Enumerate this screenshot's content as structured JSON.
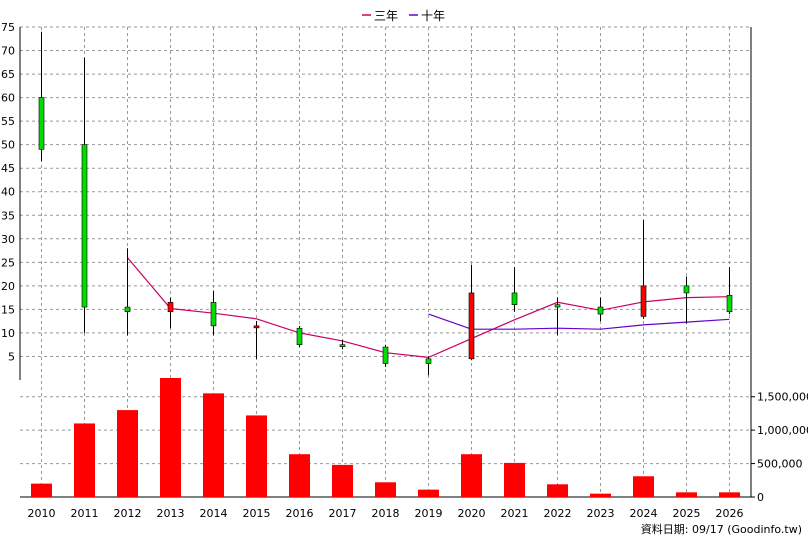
{
  "legend": {
    "ma3_label": "三年",
    "ma10_label": "十年"
  },
  "footer": "資料日期: 09/17  (Goodinfo.tw)",
  "colors": {
    "up": "#ff0000",
    "down": "#00dd00",
    "ma3": "#cc0066",
    "ma10": "#6600cc",
    "volume": "#ff0000",
    "grid": "#999999"
  },
  "chart_data": [
    {
      "type": "candlestick",
      "title": "",
      "categories": [
        "2010",
        "2011",
        "2012",
        "2013",
        "2014",
        "2015",
        "2016",
        "2017",
        "2018",
        "2019",
        "2020",
        "2021",
        "2022",
        "2023",
        "2024",
        "2025",
        "2026"
      ],
      "ylim": [
        0,
        75
      ],
      "yticks": [
        5,
        10,
        15,
        20,
        25,
        30,
        35,
        40,
        45,
        50,
        55,
        60,
        65,
        70,
        75
      ],
      "grid": true,
      "candles": [
        {
          "open": 60,
          "high": 74,
          "low": 46.5,
          "close": 49
        },
        {
          "open": 50,
          "high": 68.5,
          "low": 10,
          "close": 15.5
        },
        {
          "open": 15.5,
          "high": 28,
          "low": 9.5,
          "close": 14.5
        },
        {
          "open": 14.5,
          "high": 17.5,
          "low": 11,
          "close": 16.5
        },
        {
          "open": 16.5,
          "high": 19,
          "low": 9.5,
          "close": 11.5
        },
        {
          "open": 11.5,
          "high": 12.5,
          "low": 4.5,
          "close": 11.5
        },
        {
          "open": 11,
          "high": 11.5,
          "low": 7,
          "close": 7.5
        },
        {
          "open": 7.5,
          "high": 8.5,
          "low": 6.5,
          "close": 7.3
        },
        {
          "open": 7,
          "high": 7.5,
          "low": 2.8,
          "close": 3.5
        },
        {
          "open": 4.5,
          "high": 5,
          "low": 1,
          "close": 3.5
        },
        {
          "open": 4.5,
          "high": 24.5,
          "low": 4.2,
          "close": 18.5
        },
        {
          "open": 18.5,
          "high": 24,
          "low": 14.5,
          "close": 16
        },
        {
          "open": 16,
          "high": 17.5,
          "low": 9.5,
          "close": 15.5
        },
        {
          "open": 15.5,
          "high": 17.5,
          "low": 12.5,
          "close": 14
        },
        {
          "open": 13.5,
          "high": 34,
          "low": 13,
          "close": 20
        },
        {
          "open": 20,
          "high": 22,
          "low": 12,
          "close": 18.5
        },
        {
          "open": 18,
          "high": 24,
          "low": 14,
          "close": 14.5
        }
      ],
      "series": [
        {
          "name": "三年",
          "values": [
            null,
            null,
            26,
            15.2,
            14.2,
            13,
            10,
            8.3,
            5.8,
            4.8,
            8.8,
            12.8,
            16.5,
            14.8,
            16.6,
            17.5,
            17.7
          ]
        },
        {
          "name": "十年",
          "values": [
            null,
            null,
            null,
            null,
            null,
            null,
            null,
            null,
            null,
            14,
            10.8,
            10.8,
            11,
            10.8,
            11.7,
            12.3,
            12.9
          ]
        }
      ]
    },
    {
      "type": "bar",
      "title": "",
      "categories": [
        "2010",
        "2011",
        "2012",
        "2013",
        "2014",
        "2015",
        "2016",
        "2017",
        "2018",
        "2019",
        "2020",
        "2021",
        "2022",
        "2023",
        "2024",
        "2025",
        "2026"
      ],
      "values": [
        200000,
        1100000,
        1300000,
        1780000,
        1550000,
        1220000,
        640000,
        480000,
        220000,
        110000,
        640000,
        510000,
        190000,
        50000,
        310000,
        70000,
        70000
      ],
      "ylim": [
        0,
        1750000
      ],
      "yticks": [
        0,
        500000,
        1000000,
        1500000
      ],
      "ytick_labels": [
        "0",
        "500,000",
        "1,000,000",
        "1,500,000"
      ],
      "grid": true
    }
  ]
}
